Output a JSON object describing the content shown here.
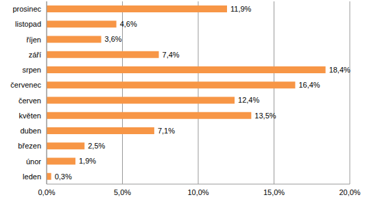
{
  "chart_data": {
    "type": "bar",
    "orientation": "horizontal",
    "categories": [
      "prosinec",
      "listopad",
      "říjen",
      "září",
      "srpen",
      "červenec",
      "červen",
      "květen",
      "duben",
      "březen",
      "únor",
      "leden"
    ],
    "values": [
      11.9,
      4.6,
      3.6,
      7.4,
      18.4,
      16.4,
      12.4,
      13.5,
      7.1,
      2.5,
      1.9,
      0.3
    ],
    "value_labels": [
      "11,9%",
      "4,6%",
      "3,6%",
      "7,4%",
      "18,4%",
      "16,4%",
      "12,4%",
      "13,5%",
      "7,1%",
      "2,5%",
      "1,9%",
      "0,3%"
    ],
    "color": "#f79646",
    "xlim": [
      0,
      20
    ],
    "xticks": [
      {
        "value": 0,
        "label": "0,0%"
      },
      {
        "value": 5,
        "label": "5,0%"
      },
      {
        "value": 10,
        "label": "10,0%"
      },
      {
        "value": 15,
        "label": "15,0%"
      },
      {
        "value": 20,
        "label": "20,0%"
      }
    ],
    "grid": true,
    "data_labels": true
  }
}
